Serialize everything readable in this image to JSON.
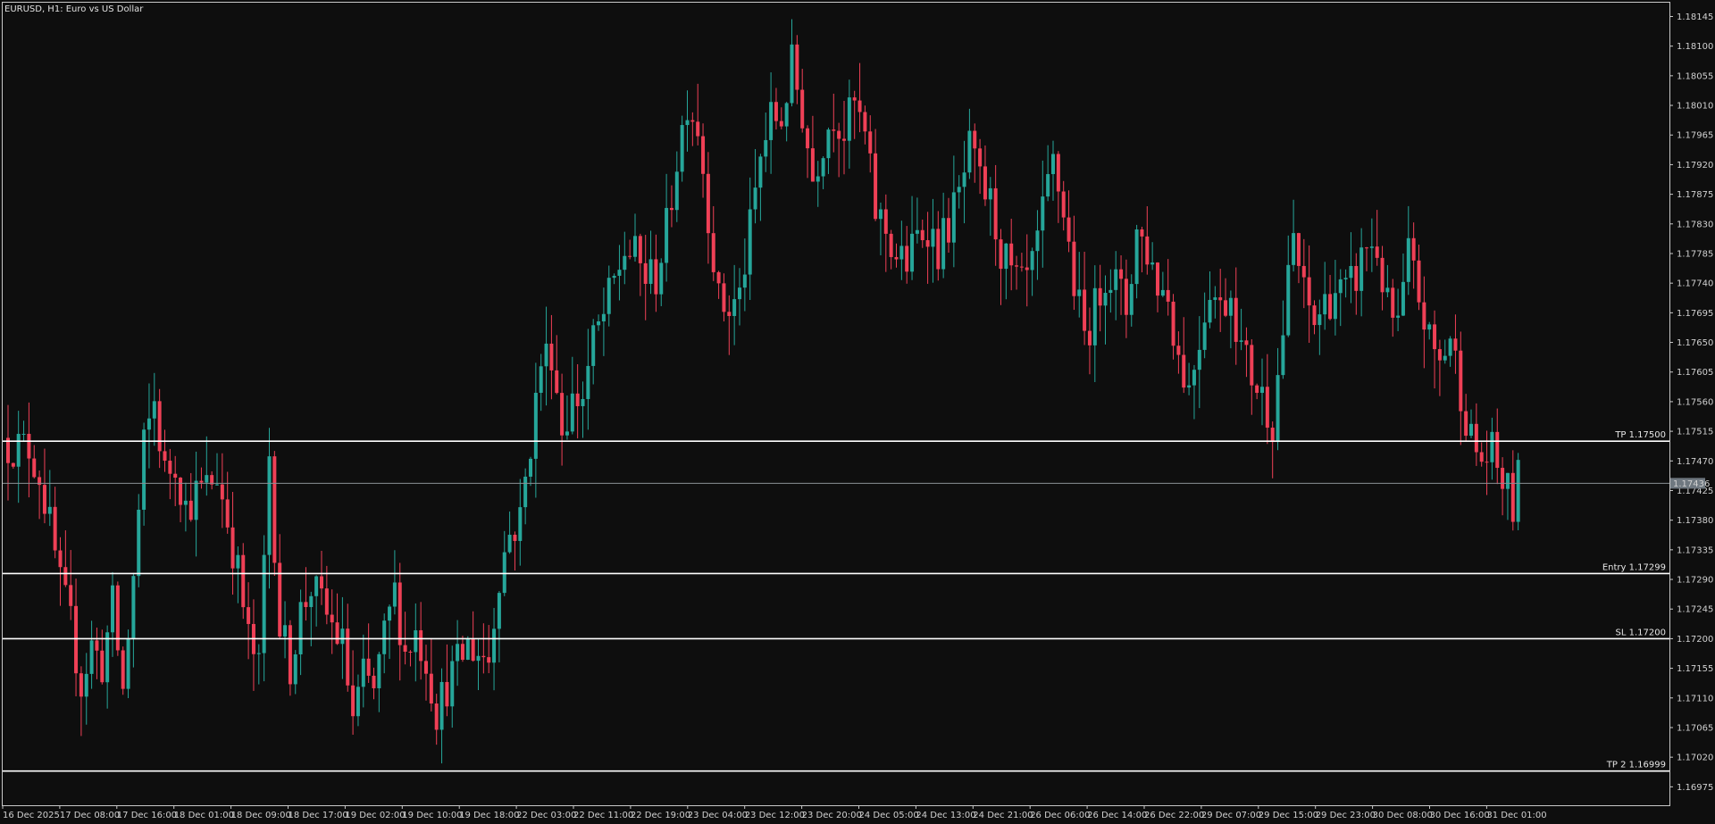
{
  "header": {
    "symbol_label": "EURUSD, H1:  Euro vs US Dollar"
  },
  "colors": {
    "background": "#0e0e0e",
    "frame": "#c8c8c8",
    "bull": "#26a69a",
    "bear": "#ef4056",
    "level_line": "#ffffff",
    "price_line": "#8a9096",
    "price_tag_bg": "#6f7880"
  },
  "chart_data": {
    "type": "candlestick",
    "ylim": [
      1.1695,
      1.1818
    ],
    "y_ticks": [
      "1.18145",
      "1.18100",
      "1.18055",
      "1.18010",
      "1.17965",
      "1.17920",
      "1.17875",
      "1.17830",
      "1.17785",
      "1.17740",
      "1.17695",
      "1.17650",
      "1.17605",
      "1.17560",
      "1.17515",
      "1.17470",
      "1.17425",
      "1.17380",
      "1.17335",
      "1.17290",
      "1.17245",
      "1.17200",
      "1.17155",
      "1.17110",
      "1.17065",
      "1.17020",
      "1.16975"
    ],
    "x_ticks": [
      "16 Dec 2025",
      "17 Dec 08:00",
      "17 Dec 16:00",
      "18 Dec 01:00",
      "18 Dec 09:00",
      "18 Dec 17:00",
      "19 Dec 02:00",
      "19 Dec 10:00",
      "19 Dec 18:00",
      "22 Dec 03:00",
      "22 Dec 11:00",
      "22 Dec 19:00",
      "23 Dec 04:00",
      "23 Dec 12:00",
      "23 Dec 20:00",
      "24 Dec 05:00",
      "24 Dec 13:00",
      "24 Dec 21:00",
      "26 Dec 06:00",
      "26 Dec 14:00",
      "26 Dec 22:00",
      "29 Dec 07:00",
      "29 Dec 15:00",
      "29 Dec 23:00",
      "30 Dec 08:00",
      "30 Dec 16:00",
      "31 Dec 01:00"
    ],
    "levels": [
      {
        "label": "TP 1.17500",
        "price": 1.175
      },
      {
        "label": "Entry 1.17299",
        "price": 1.17299
      },
      {
        "label": "SL 1.17200",
        "price": 1.172
      },
      {
        "label": "TP 2 1.16999",
        "price": 1.16999
      }
    ],
    "current_price": {
      "label": "1.17436",
      "price": 1.17436
    },
    "close_path": [
      [
        0,
        1.17495
      ],
      [
        4,
        1.1749
      ],
      [
        6,
        1.1745
      ],
      [
        8,
        1.1737
      ],
      [
        10,
        1.1728
      ],
      [
        12,
        1.1722
      ],
      [
        14,
        1.1713
      ],
      [
        16,
        1.1719
      ],
      [
        18,
        1.1716
      ],
      [
        20,
        1.1725
      ],
      [
        22,
        1.1712
      ],
      [
        24,
        1.1729
      ],
      [
        26,
        1.1749
      ],
      [
        28,
        1.1756
      ],
      [
        30,
        1.1745
      ],
      [
        32,
        1.1747
      ],
      [
        34,
        1.174
      ],
      [
        36,
        1.1742
      ],
      [
        38,
        1.1743
      ],
      [
        40,
        1.1745
      ],
      [
        42,
        1.1738
      ],
      [
        44,
        1.173
      ],
      [
        46,
        1.172
      ],
      [
        48,
        1.1715
      ],
      [
        50,
        1.1748
      ],
      [
        52,
        1.1722
      ],
      [
        54,
        1.1716
      ],
      [
        56,
        1.1724
      ],
      [
        58,
        1.1728
      ],
      [
        60,
        1.1725
      ],
      [
        62,
        1.1722
      ],
      [
        64,
        1.1719
      ],
      [
        66,
        1.1708
      ],
      [
        68,
        1.1714
      ],
      [
        70,
        1.1712
      ],
      [
        72,
        1.172
      ],
      [
        74,
        1.1727
      ],
      [
        76,
        1.1718
      ],
      [
        78,
        1.1721
      ],
      [
        80,
        1.1717
      ],
      [
        82,
        1.1709
      ],
      [
        84,
        1.1713
      ],
      [
        86,
        1.1716
      ],
      [
        88,
        1.1719
      ],
      [
        90,
        1.1718
      ],
      [
        92,
        1.1717
      ],
      [
        94,
        1.173
      ],
      [
        96,
        1.1736
      ],
      [
        98,
        1.1738
      ],
      [
        100,
        1.175
      ],
      [
        102,
        1.1762
      ],
      [
        104,
        1.1764
      ],
      [
        106,
        1.1752
      ],
      [
        108,
        1.1756
      ],
      [
        110,
        1.1757
      ],
      [
        112,
        1.1765
      ],
      [
        114,
        1.1769
      ],
      [
        116,
        1.1774
      ],
      [
        118,
        1.1779
      ],
      [
        120,
        1.1778
      ],
      [
        122,
        1.1775
      ],
      [
        124,
        1.1775
      ],
      [
        126,
        1.1782
      ],
      [
        128,
        1.1793
      ],
      [
        130,
        1.1802
      ],
      [
        132,
        1.1798
      ],
      [
        134,
        1.1785
      ],
      [
        136,
        1.1771
      ],
      [
        138,
        1.177
      ],
      [
        140,
        1.1772
      ],
      [
        142,
        1.1782
      ],
      [
        144,
        1.1793
      ],
      [
        146,
        1.1799
      ],
      [
        148,
        1.1799
      ],
      [
        150,
        1.1807
      ],
      [
        152,
        1.18
      ],
      [
        154,
        1.179
      ],
      [
        156,
        1.1796
      ],
      [
        158,
        1.18
      ],
      [
        160,
        1.1797
      ],
      [
        162,
        1.1801
      ],
      [
        164,
        1.1796
      ],
      [
        166,
        1.1785
      ],
      [
        168,
        1.1782
      ],
      [
        170,
        1.1778
      ],
      [
        172,
        1.1777
      ],
      [
        174,
        1.1781
      ],
      [
        176,
        1.1783
      ],
      [
        178,
        1.1779
      ],
      [
        180,
        1.1783
      ],
      [
        182,
        1.1787
      ],
      [
        184,
        1.1794
      ],
      [
        186,
        1.1789
      ],
      [
        188,
        1.1786
      ],
      [
        190,
        1.1779
      ],
      [
        192,
        1.1775
      ],
      [
        194,
        1.1773
      ],
      [
        196,
        1.1776
      ],
      [
        198,
        1.1784
      ],
      [
        200,
        1.1792
      ],
      [
        202,
        1.1785
      ],
      [
        204,
        1.1774
      ],
      [
        206,
        1.1766
      ],
      [
        208,
        1.177
      ],
      [
        210,
        1.1776
      ],
      [
        212,
        1.1774
      ],
      [
        214,
        1.177
      ],
      [
        216,
        1.1782
      ],
      [
        218,
        1.1779
      ],
      [
        220,
        1.1774
      ],
      [
        222,
        1.1772
      ],
      [
        224,
        1.1763
      ],
      [
        226,
        1.1758
      ],
      [
        228,
        1.1766
      ],
      [
        230,
        1.1774
      ],
      [
        232,
        1.177
      ],
      [
        234,
        1.1773
      ],
      [
        236,
        1.1764
      ],
      [
        238,
        1.176
      ],
      [
        240,
        1.1757
      ],
      [
        242,
        1.1753
      ],
      [
        244,
        1.1767
      ],
      [
        246,
        1.1781
      ],
      [
        248,
        1.1772
      ],
      [
        250,
        1.1768
      ],
      [
        252,
        1.1771
      ],
      [
        254,
        1.1773
      ],
      [
        256,
        1.1772
      ],
      [
        258,
        1.1775
      ],
      [
        260,
        1.178
      ],
      [
        262,
        1.1779
      ],
      [
        264,
        1.177
      ],
      [
        266,
        1.1767
      ],
      [
        268,
        1.1778
      ],
      [
        270,
        1.1772
      ],
      [
        272,
        1.1765
      ],
      [
        274,
        1.1762
      ],
      [
        276,
        1.1766
      ],
      [
        278,
        1.1758
      ],
      [
        280,
        1.175
      ],
      [
        282,
        1.1747
      ],
      [
        284,
        1.1748
      ],
      [
        286,
        1.1744
      ],
      [
        288,
        1.174
      ],
      [
        289,
        1.1744
      ]
    ]
  }
}
